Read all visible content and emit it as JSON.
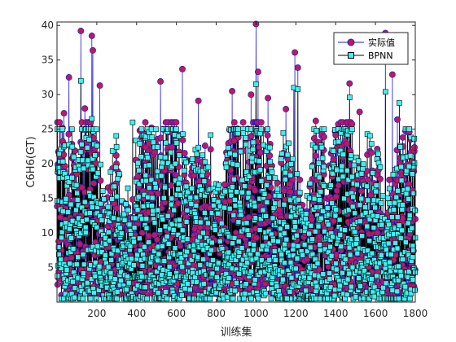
{
  "chart_data": {
    "type": "line",
    "title": "",
    "xlabel": "训练集",
    "ylabel": "C6H6(GT)",
    "xlim": [
      0,
      1800
    ],
    "ylim": [
      0,
      40.5
    ],
    "xticks": [
      "200",
      "400",
      "600",
      "800",
      "1000",
      "1200",
      "1400",
      "1600",
      "1800"
    ],
    "yticks": [
      "5",
      "10",
      "15",
      "20",
      "25",
      "30",
      "35",
      "40"
    ],
    "legend_position": "top-right",
    "grid": false,
    "n_points": 1800,
    "series": [
      {
        "name": "实际值",
        "line_color": "#1f1fc8",
        "marker": "circle",
        "marker_fill": "#c2185b",
        "peaks": [
          {
            "x": 120,
            "y": 39.2
          },
          {
            "x": 175,
            "y": 38.5
          },
          {
            "x": 180,
            "y": 36.4
          },
          {
            "x": 60,
            "y": 32.5
          },
          {
            "x": 215,
            "y": 31.3
          },
          {
            "x": 140,
            "y": 28.0
          },
          {
            "x": 35,
            "y": 27.3
          },
          {
            "x": 520,
            "y": 31.9
          },
          {
            "x": 630,
            "y": 33.7
          },
          {
            "x": 710,
            "y": 29.1
          },
          {
            "x": 880,
            "y": 30.5
          },
          {
            "x": 1000,
            "y": 40.2
          },
          {
            "x": 1010,
            "y": 33.3
          },
          {
            "x": 975,
            "y": 30.0
          },
          {
            "x": 1060,
            "y": 29.5
          },
          {
            "x": 1150,
            "y": 27.9
          },
          {
            "x": 1195,
            "y": 36.1
          },
          {
            "x": 1210,
            "y": 33.9
          },
          {
            "x": 1300,
            "y": 26.2
          },
          {
            "x": 1470,
            "y": 31.6
          },
          {
            "x": 1520,
            "y": 27.5
          },
          {
            "x": 1650,
            "y": 38.9
          },
          {
            "x": 1685,
            "y": 32.9
          },
          {
            "x": 1710,
            "y": 26.4
          }
        ]
      },
      {
        "name": "BPNN",
        "line_color": "#000000",
        "marker": "square",
        "marker_fill": "#3ff0f0",
        "peaks": [
          {
            "x": 120,
            "y": 32.0
          },
          {
            "x": 175,
            "y": 26.5
          },
          {
            "x": 380,
            "y": 26.0
          },
          {
            "x": 1000,
            "y": 31.5
          },
          {
            "x": 1190,
            "y": 31.0
          },
          {
            "x": 1210,
            "y": 30.8
          },
          {
            "x": 1470,
            "y": 29.6
          },
          {
            "x": 1650,
            "y": 30.4
          },
          {
            "x": 1720,
            "y": 28.8
          }
        ]
      }
    ]
  }
}
